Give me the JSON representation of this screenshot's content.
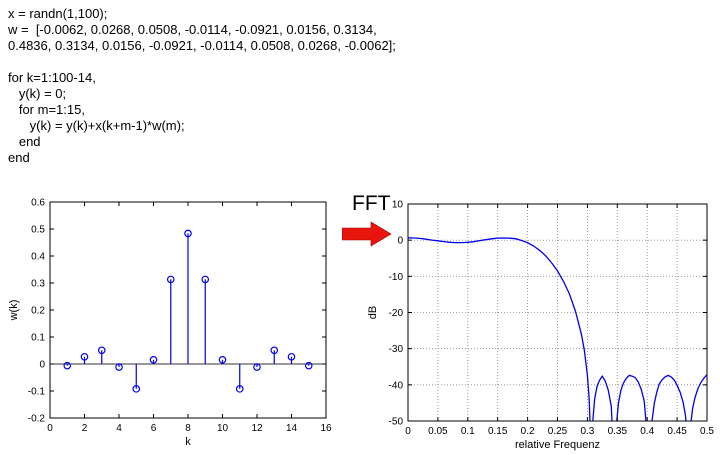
{
  "code_block": {
    "lines": [
      "x = randn(1,100);",
      "w =  [-0.0062, 0.0268, 0.0508, -0.0114, -0.0921, 0.0156, 0.3134,",
      "0.4836, 0.3134, 0.0156, -0.0921, -0.0114, 0.0508, 0.0268, -0.0062];",
      "",
      "for k=1:100-14,",
      "   y(k) = 0;",
      "   for m=1:15,",
      "      y(k) = y(k)+x(k+m-1)*w(m);",
      "   end",
      "end"
    ]
  },
  "fft_label": "FFT",
  "colors": {
    "plot_blue": "#0000EE",
    "arrow_red": "#E8150C",
    "grid_gray": "#888888",
    "axis_black": "#000000",
    "baseline": "#333333"
  },
  "chart_data": [
    {
      "name": "filter-coefficients",
      "type": "scatter",
      "style": "stem",
      "title": "",
      "xlabel": "k",
      "ylabel": "w(k)",
      "xlim": [
        0,
        16
      ],
      "ylim": [
        -0.2,
        0.6
      ],
      "xticks": [
        0,
        2,
        4,
        6,
        8,
        10,
        12,
        14,
        16
      ],
      "yticks": [
        -0.2,
        -0.1,
        0,
        0.1,
        0.2,
        0.3,
        0.4,
        0.5,
        0.6
      ],
      "grid": false,
      "marker": "circle-open",
      "color": "#0000EE",
      "x": [
        1,
        2,
        3,
        4,
        5,
        6,
        7,
        8,
        9,
        10,
        11,
        12,
        13,
        14,
        15
      ],
      "values": [
        -0.0062,
        0.0268,
        0.0508,
        -0.0114,
        -0.0921,
        0.0156,
        0.3134,
        0.4836,
        0.3134,
        0.0156,
        -0.0921,
        -0.0114,
        0.0508,
        0.0268,
        -0.0062
      ]
    },
    {
      "name": "frequency-response",
      "type": "line",
      "title": "",
      "xlabel": "relative Frequenz",
      "ylabel": "dB",
      "xlim": [
        0,
        0.5
      ],
      "ylim": [
        -50,
        10
      ],
      "xticks": [
        0,
        0.05,
        0.1,
        0.15,
        0.2,
        0.25,
        0.3,
        0.35,
        0.4,
        0.45,
        0.5
      ],
      "yticks": [
        -50,
        -40,
        -30,
        -20,
        -10,
        0,
        10
      ],
      "grid": true,
      "color": "#0000EE",
      "x": [
        0,
        0.01,
        0.02,
        0.03,
        0.04,
        0.05,
        0.06,
        0.07,
        0.08,
        0.09,
        0.1,
        0.11,
        0.12,
        0.13,
        0.14,
        0.15,
        0.16,
        0.17,
        0.18,
        0.19,
        0.2,
        0.21,
        0.22,
        0.23,
        0.24,
        0.25,
        0.26,
        0.27,
        0.28,
        0.29,
        0.295,
        0.3,
        0.303,
        0.306,
        0.309,
        0.312,
        0.316,
        0.32,
        0.325,
        0.33,
        0.335,
        0.34,
        0.344,
        0.348,
        0.352,
        0.356,
        0.36,
        0.365,
        0.37,
        0.375,
        0.38,
        0.385,
        0.39,
        0.395,
        0.4,
        0.404,
        0.408,
        0.412,
        0.416,
        0.42,
        0.425,
        0.43,
        0.435,
        0.44,
        0.445,
        0.45,
        0.455,
        0.46,
        0.464,
        0.468,
        0.472,
        0.476,
        0.48,
        0.485,
        0.49,
        0.495,
        0.5
      ],
      "values": [
        0.65,
        0.61,
        0.48,
        0.27,
        0.03,
        -0.17,
        -0.4,
        -0.58,
        -0.68,
        -0.66,
        -0.59,
        -0.42,
        -0.12,
        0.12,
        0.38,
        0.57,
        0.6,
        0.54,
        0.4,
        -0.1,
        -0.7,
        -1.6,
        -2.8,
        -4.3,
        -6.2,
        -8.5,
        -11.4,
        -14.9,
        -19.6,
        -26.0,
        -30.5,
        -37.4,
        -44,
        -58,
        -50,
        -44,
        -40.5,
        -38.8,
        -37.6,
        -39.0,
        -41.5,
        -46,
        -60,
        -52,
        -45,
        -41.5,
        -39.6,
        -38.2,
        -37.4,
        -37.6,
        -38.0,
        -39.2,
        -41.2,
        -44.5,
        -53.7,
        -62,
        -50,
        -45,
        -42,
        -39.8,
        -38.6,
        -37.8,
        -37.4,
        -37.8,
        -38.6,
        -40.1,
        -42,
        -44.8,
        -48.5,
        -58,
        -52,
        -46.5,
        -43.5,
        -41,
        -39.3,
        -38.1,
        -37.2
      ]
    }
  ]
}
